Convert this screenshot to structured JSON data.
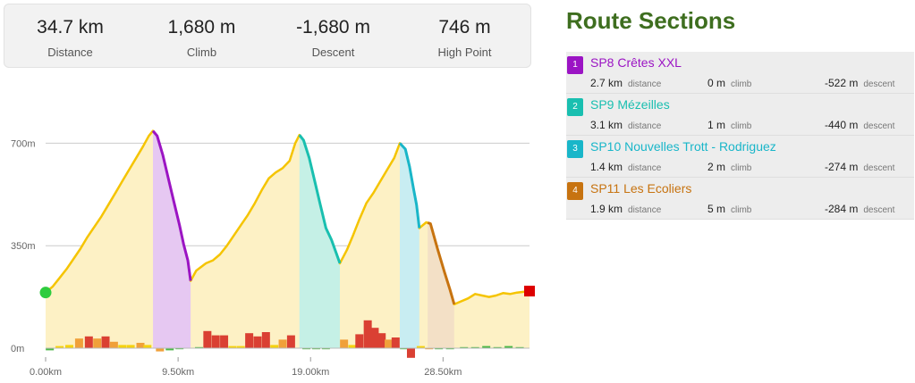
{
  "stats": [
    {
      "value": "34.7 km",
      "label": "Distance"
    },
    {
      "value": "1,680 m",
      "label": "Climb"
    },
    {
      "value": "-1,680 m",
      "label": "Descent"
    },
    {
      "value": "746 m",
      "label": "High Point"
    }
  ],
  "sections_title": "Route Sections",
  "sections": [
    {
      "num": "1",
      "name": "SP8 Crêtes XXL",
      "color": "#9b14c4",
      "distance": "2.7 km",
      "climb": "0 m",
      "descent": "-522 m",
      "distance_unit": "distance",
      "climb_unit": "climb",
      "descent_unit": "descent"
    },
    {
      "num": "2",
      "name": "SP9 Mézeilles",
      "color": "#19bfb0",
      "distance": "3.1 km",
      "climb": "1 m",
      "descent": "-440 m",
      "distance_unit": "distance",
      "climb_unit": "climb",
      "descent_unit": "descent"
    },
    {
      "num": "3",
      "name": "SP10 Nouvelles Trott - Rodriguez",
      "color": "#19b6c9",
      "distance": "1.4 km",
      "climb": "2 m",
      "descent": "-274 m",
      "distance_unit": "distance",
      "climb_unit": "climb",
      "descent_unit": "descent"
    },
    {
      "num": "4",
      "name": "SP11 Les Ecoliers",
      "color": "#c77310",
      "distance": "1.9 km",
      "climb": "5 m",
      "descent": "-284 m",
      "distance_unit": "distance",
      "climb_unit": "climb",
      "descent_unit": "descent"
    }
  ],
  "chart_data": {
    "type": "area",
    "y_ticks": [
      "700m",
      "350m",
      "0m"
    ],
    "x_ticks": [
      "0.00km",
      "9.50km",
      "19.00km",
      "28.50km"
    ],
    "ylim": [
      0,
      750
    ],
    "xlim": [
      0,
      34.7
    ],
    "profile": [
      [
        0.0,
        190
      ],
      [
        0.5,
        210
      ],
      [
        1.0,
        240
      ],
      [
        1.5,
        270
      ],
      [
        2.0,
        305
      ],
      [
        2.5,
        340
      ],
      [
        3.0,
        380
      ],
      [
        3.5,
        415
      ],
      [
        4.0,
        450
      ],
      [
        4.5,
        490
      ],
      [
        5.0,
        530
      ],
      [
        5.5,
        570
      ],
      [
        6.0,
        610
      ],
      [
        6.5,
        650
      ],
      [
        7.0,
        690
      ],
      [
        7.4,
        725
      ],
      [
        7.7,
        742
      ],
      [
        8.0,
        725
      ],
      [
        8.4,
        660
      ],
      [
        8.8,
        580
      ],
      [
        9.2,
        500
      ],
      [
        9.6,
        420
      ],
      [
        9.9,
        355
      ],
      [
        10.2,
        300
      ],
      [
        10.4,
        230
      ],
      [
        10.8,
        265
      ],
      [
        11.5,
        290
      ],
      [
        12.0,
        300
      ],
      [
        12.5,
        320
      ],
      [
        13.0,
        350
      ],
      [
        13.5,
        385
      ],
      [
        14.0,
        420
      ],
      [
        14.5,
        455
      ],
      [
        15.0,
        495
      ],
      [
        15.5,
        540
      ],
      [
        16.0,
        580
      ],
      [
        16.5,
        600
      ],
      [
        17.0,
        615
      ],
      [
        17.5,
        640
      ],
      [
        17.9,
        700
      ],
      [
        18.2,
        728
      ],
      [
        18.5,
        710
      ],
      [
        18.9,
        650
      ],
      [
        19.3,
        570
      ],
      [
        19.7,
        490
      ],
      [
        20.1,
        410
      ],
      [
        20.5,
        370
      ],
      [
        20.8,
        330
      ],
      [
        21.1,
        290
      ],
      [
        21.6,
        335
      ],
      [
        22.0,
        380
      ],
      [
        22.5,
        440
      ],
      [
        23.0,
        495
      ],
      [
        23.5,
        530
      ],
      [
        24.0,
        570
      ],
      [
        24.5,
        610
      ],
      [
        25.0,
        650
      ],
      [
        25.4,
        700
      ],
      [
        25.8,
        680
      ],
      [
        26.1,
        620
      ],
      [
        26.4,
        540
      ],
      [
        26.6,
        490
      ],
      [
        26.8,
        410
      ],
      [
        27.3,
        430
      ],
      [
        27.6,
        425
      ],
      [
        28.1,
        340
      ],
      [
        28.6,
        260
      ],
      [
        29.0,
        200
      ],
      [
        29.3,
        150
      ],
      [
        29.8,
        160
      ],
      [
        30.3,
        170
      ],
      [
        30.8,
        185
      ],
      [
        31.3,
        180
      ],
      [
        31.8,
        175
      ],
      [
        32.3,
        180
      ],
      [
        32.8,
        188
      ],
      [
        33.3,
        185
      ],
      [
        33.8,
        190
      ],
      [
        34.2,
        192
      ],
      [
        34.7,
        195
      ]
    ],
    "section_ranges": [
      {
        "start": 7.7,
        "end": 10.4,
        "section": 1
      },
      {
        "start": 18.2,
        "end": 21.1,
        "section": 2
      },
      {
        "start": 25.4,
        "end": 26.8,
        "section": 3
      },
      {
        "start": 27.4,
        "end": 29.3,
        "section": 4
      }
    ],
    "grade_bars": [
      [
        0.3,
        -2,
        "#4cb848"
      ],
      [
        1.0,
        2,
        "#f5d20e"
      ],
      [
        1.7,
        3,
        "#f5d20e"
      ],
      [
        2.4,
        9,
        "#f0a03a"
      ],
      [
        3.1,
        11,
        "#da4033"
      ],
      [
        3.7,
        9,
        "#f0a03a"
      ],
      [
        4.3,
        11,
        "#da4033"
      ],
      [
        4.9,
        6,
        "#f0a03a"
      ],
      [
        5.5,
        3,
        "#f5d20e"
      ],
      [
        6.1,
        3,
        "#f5d20e"
      ],
      [
        6.8,
        5,
        "#f0a03a"
      ],
      [
        7.3,
        3,
        "#f5d20e"
      ],
      [
        8.2,
        -3,
        "#f0a03a"
      ],
      [
        8.9,
        -2,
        "#4cb848"
      ],
      [
        9.6,
        -1,
        "#4cb848"
      ],
      [
        11.0,
        1,
        "#4cb848"
      ],
      [
        11.6,
        16,
        "#da4033"
      ],
      [
        12.2,
        12,
        "#da4033"
      ],
      [
        12.8,
        12,
        "#da4033"
      ],
      [
        13.4,
        2,
        "#f5d20e"
      ],
      [
        14.0,
        2,
        "#f5d20e"
      ],
      [
        14.6,
        14,
        "#da4033"
      ],
      [
        15.2,
        11,
        "#da4033"
      ],
      [
        15.8,
        15,
        "#da4033"
      ],
      [
        16.4,
        3,
        "#f5d20e"
      ],
      [
        17.0,
        8,
        "#f0a03a"
      ],
      [
        17.6,
        12,
        "#da4033"
      ],
      [
        18.7,
        -1,
        "#4cb848"
      ],
      [
        19.4,
        -1,
        "#4cb848"
      ],
      [
        20.1,
        -1,
        "#4cb848"
      ],
      [
        21.4,
        8,
        "#f0a03a"
      ],
      [
        22.0,
        3,
        "#f5d20e"
      ],
      [
        22.5,
        13,
        "#da4033"
      ],
      [
        23.1,
        26,
        "#da4033"
      ],
      [
        23.6,
        19,
        "#da4033"
      ],
      [
        24.1,
        14,
        "#da4033"
      ],
      [
        24.6,
        8,
        "#f0a03a"
      ],
      [
        25.1,
        10,
        "#da4033"
      ],
      [
        25.7,
        -1,
        "#4cb848"
      ],
      [
        26.2,
        -9,
        "#da4033"
      ],
      [
        26.9,
        2,
        "#f5d20e"
      ],
      [
        27.5,
        -1,
        "#f0a03a"
      ],
      [
        28.2,
        -1,
        "#4cb848"
      ],
      [
        29.0,
        -1,
        "#4cb848"
      ],
      [
        30.0,
        1,
        "#4cb848"
      ],
      [
        30.8,
        1,
        "#4cb848"
      ],
      [
        31.6,
        2,
        "#4cb848"
      ],
      [
        32.4,
        1,
        "#4cb848"
      ],
      [
        33.2,
        2,
        "#4cb848"
      ],
      [
        34.0,
        1,
        "#4cb848"
      ]
    ],
    "colors": {
      "line": "#f5c400",
      "area": "#fdf1c5",
      "grid": "#cccccc",
      "start_marker": "#2ecc3e",
      "end_marker": "#dd0000"
    }
  }
}
